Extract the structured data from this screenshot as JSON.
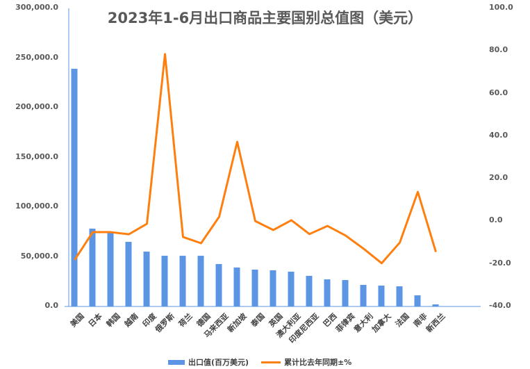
{
  "chart_data": {
    "type": "bar+line",
    "title": "2023年1-6月出口商品主要国别总值图（美元）",
    "categories": [
      "美国",
      "日本",
      "韩国",
      "越南",
      "印度",
      "俄罗斯",
      "荷兰",
      "德国",
      "马来西亚",
      "新加坡",
      "泰国",
      "英国",
      "澳大利亚",
      "印度尼西亚",
      "巴西",
      "菲律宾",
      "意大利",
      "加拿大",
      "法国",
      "南非",
      "新西兰"
    ],
    "series": [
      {
        "name": "出口值(百万美元)",
        "type": "bar",
        "axis": "left",
        "color": "#5b95e4",
        "values": [
          239200,
          78300,
          75500,
          65000,
          55200,
          51000,
          51000,
          51000,
          42700,
          39200,
          37100,
          36400,
          35000,
          30800,
          27300,
          26600,
          21700,
          21000,
          20300,
          11200,
          2100
        ]
      },
      {
        "name": "累计比去年同期±%",
        "type": "line",
        "axis": "right",
        "color": "#ff7f0e",
        "values": [
          -18.1,
          -5.1,
          -5.1,
          -6.1,
          -1.2,
          78.5,
          -7.4,
          -10.3,
          2.1,
          37.3,
          0.1,
          -4.1,
          0.5,
          -6.0,
          -2.2,
          -6.7,
          -12.9,
          -19.7,
          -10.0,
          13.8,
          -14.4
        ]
      }
    ],
    "left_axis": {
      "ylim": [
        0,
        300000
      ],
      "ticks": [
        "0.0",
        "50,000.0",
        "100,000.0",
        "150,000.0",
        "200,000.0",
        "250,000.0",
        "300,000.0"
      ]
    },
    "right_axis": {
      "ylim": [
        -40,
        100
      ],
      "ticks": [
        "-40.0",
        "-20.0",
        "0.0",
        "20.0",
        "40.0",
        "60.0",
        "80.0",
        "100.0"
      ]
    },
    "legend_position": "bottom",
    "grid": false
  },
  "legend": {
    "bar_label": "出口值(百万美元)",
    "line_label": "累计比去年同期±%"
  }
}
